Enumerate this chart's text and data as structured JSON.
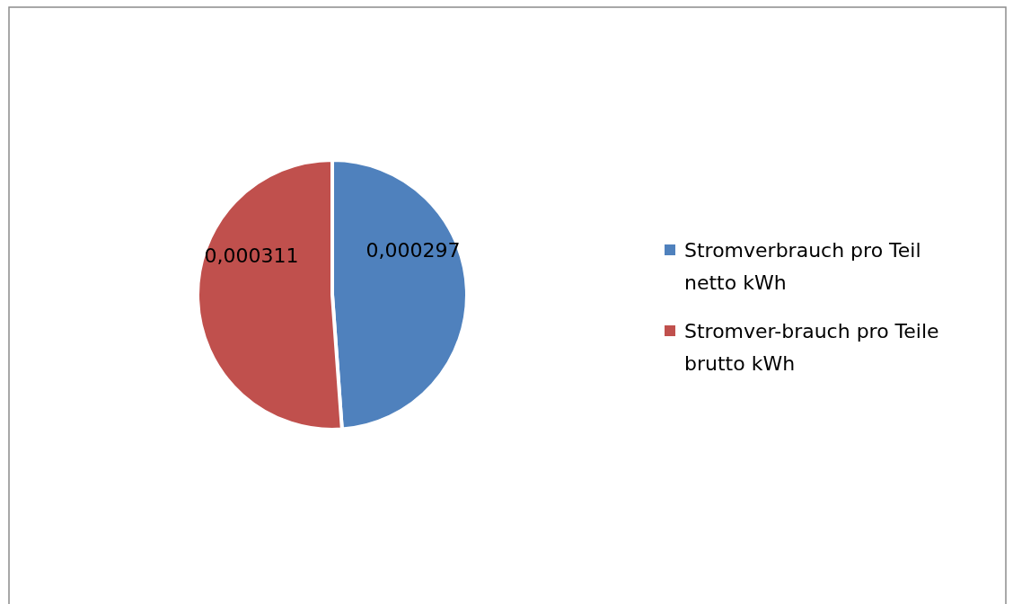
{
  "chart_data": {
    "type": "pie",
    "categories": [
      "Stromverbrauch pro Teil netto kWh",
      "Stromver-brauch pro Teile brutto kWh"
    ],
    "values": [
      0.000297,
      0.000311
    ],
    "colors": [
      "#4f81bd",
      "#c0504d"
    ],
    "value_labels": [
      "0,000297",
      "0,000311"
    ],
    "legend": "right"
  }
}
